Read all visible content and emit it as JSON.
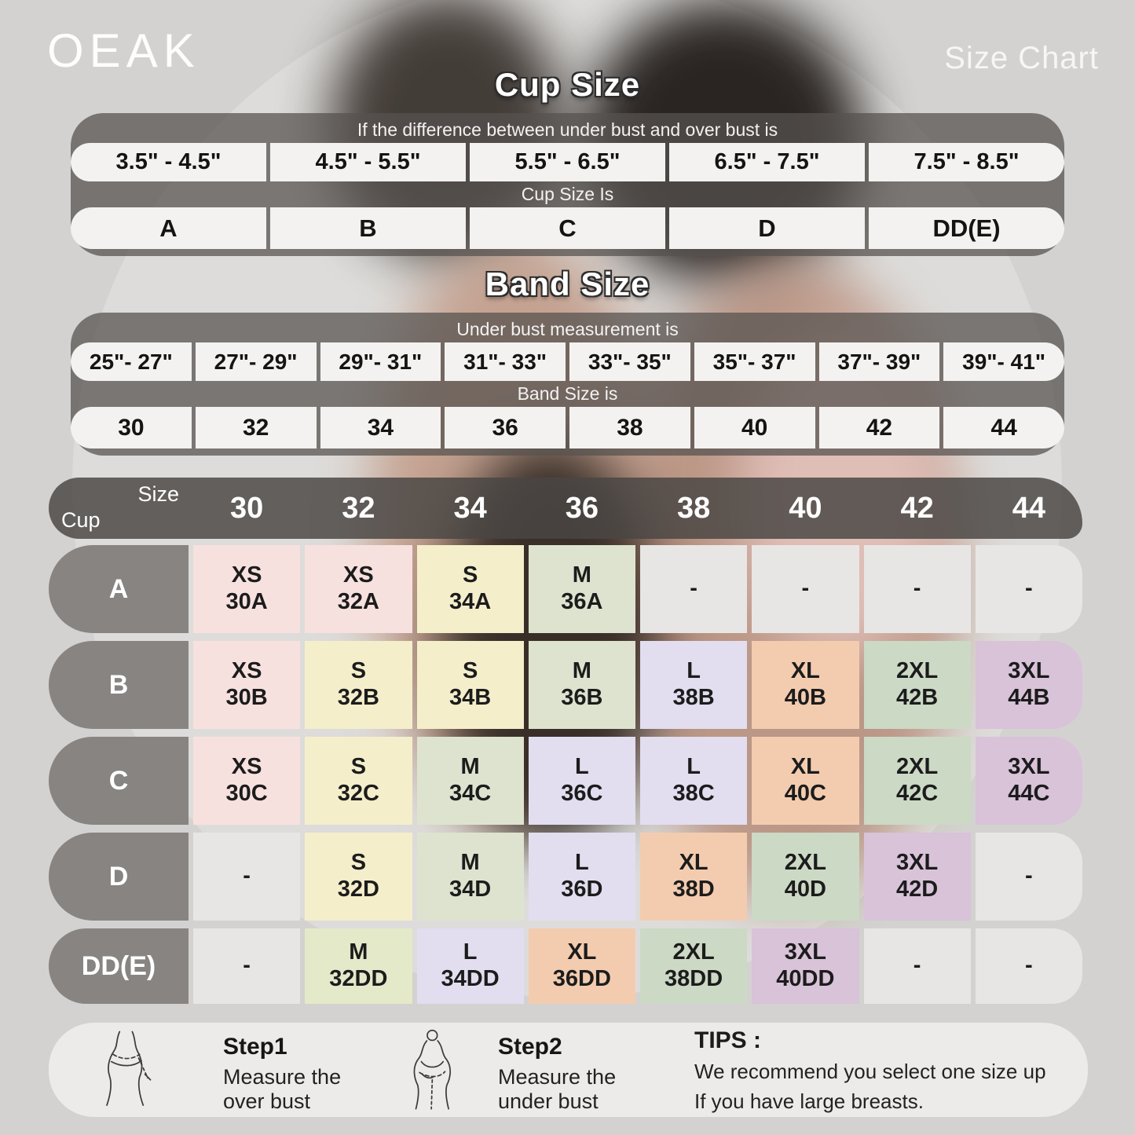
{
  "brand": "OEAK",
  "page_title": "Size Chart",
  "cup_section": {
    "title": "Cup Size",
    "condition_label": "If the  difference between under bust and over bust is",
    "ranges": [
      "3.5\" - 4.5\"",
      "4.5\" - 5.5\"",
      "5.5\" - 6.5\"",
      "6.5\" - 7.5\"",
      "7.5\" - 8.5\""
    ],
    "result_label": "Cup Size Is",
    "cups": [
      "A",
      "B",
      "C",
      "D",
      "DD(E)"
    ]
  },
  "band_section": {
    "title": "Band Size",
    "condition_label": "Under bust measurement is",
    "ranges": [
      "25\"- 27\"",
      "27\"- 29\"",
      "29\"- 31\"",
      "31\"- 33\"",
      "33\"- 35\"",
      "35\"- 37\"",
      "37\"- 39\"",
      "39\"- 41\""
    ],
    "result_label": "Band Size is",
    "bands": [
      "30",
      "32",
      "34",
      "36",
      "38",
      "40",
      "42",
      "44"
    ]
  },
  "matrix": {
    "corner_top": "Size",
    "corner_bottom": "Cup",
    "columns": [
      "30",
      "32",
      "34",
      "36",
      "38",
      "40",
      "42",
      "44"
    ],
    "colors": {
      "pink": "#f7e1df",
      "yellow": "#f5eecb",
      "green": "#dee3cf",
      "sage": "#ccd9c5",
      "lime": "#e4e9c9",
      "lavender": "#e2def0",
      "peach": "#f3ccb0",
      "mauve": "#d8c3d9",
      "empty": "#e8e6e5"
    },
    "rows": [
      {
        "cup": "A",
        "cells": [
          {
            "size": "XS",
            "code": "30A",
            "color": "pink"
          },
          {
            "size": "XS",
            "code": "32A",
            "color": "pink"
          },
          {
            "size": "S",
            "code": "34A",
            "color": "yellow"
          },
          {
            "size": "M",
            "code": "36A",
            "color": "green"
          },
          {
            "size": "-",
            "code": "",
            "color": "empty"
          },
          {
            "size": "-",
            "code": "",
            "color": "empty"
          },
          {
            "size": "-",
            "code": "",
            "color": "empty"
          },
          {
            "size": "-",
            "code": "",
            "color": "empty"
          }
        ]
      },
      {
        "cup": "B",
        "cells": [
          {
            "size": "XS",
            "code": "30B",
            "color": "pink"
          },
          {
            "size": "S",
            "code": "32B",
            "color": "yellow"
          },
          {
            "size": "S",
            "code": "34B",
            "color": "yellow"
          },
          {
            "size": "M",
            "code": "36B",
            "color": "green"
          },
          {
            "size": "L",
            "code": "38B",
            "color": "lavender"
          },
          {
            "size": "XL",
            "code": "40B",
            "color": "peach"
          },
          {
            "size": "2XL",
            "code": "42B",
            "color": "sage"
          },
          {
            "size": "3XL",
            "code": "44B",
            "color": "mauve"
          }
        ]
      },
      {
        "cup": "C",
        "cells": [
          {
            "size": "XS",
            "code": "30C",
            "color": "pink"
          },
          {
            "size": "S",
            "code": "32C",
            "color": "yellow"
          },
          {
            "size": "M",
            "code": "34C",
            "color": "green"
          },
          {
            "size": "L",
            "code": "36C",
            "color": "lavender"
          },
          {
            "size": "L",
            "code": "38C",
            "color": "lavender"
          },
          {
            "size": "XL",
            "code": "40C",
            "color": "peach"
          },
          {
            "size": "2XL",
            "code": "42C",
            "color": "sage"
          },
          {
            "size": "3XL",
            "code": "44C",
            "color": "mauve"
          }
        ]
      },
      {
        "cup": "D",
        "cells": [
          {
            "size": "-",
            "code": "",
            "color": "empty"
          },
          {
            "size": "S",
            "code": "32D",
            "color": "yellow"
          },
          {
            "size": "M",
            "code": "34D",
            "color": "green"
          },
          {
            "size": "L",
            "code": "36D",
            "color": "lavender"
          },
          {
            "size": "XL",
            "code": "38D",
            "color": "peach"
          },
          {
            "size": "2XL",
            "code": "40D",
            "color": "sage"
          },
          {
            "size": "3XL",
            "code": "42D",
            "color": "mauve"
          },
          {
            "size": "-",
            "code": "",
            "color": "empty"
          }
        ]
      },
      {
        "cup": "DD(E)",
        "cells": [
          {
            "size": "-",
            "code": "",
            "color": "empty"
          },
          {
            "size": "M",
            "code": "32DD",
            "color": "lime"
          },
          {
            "size": "L",
            "code": "34DD",
            "color": "lavender"
          },
          {
            "size": "XL",
            "code": "36DD",
            "color": "peach"
          },
          {
            "size": "2XL",
            "code": "38DD",
            "color": "sage"
          },
          {
            "size": "3XL",
            "code": "40DD",
            "color": "mauve"
          },
          {
            "size": "-",
            "code": "",
            "color": "empty"
          },
          {
            "size": "-",
            "code": "",
            "color": "empty"
          }
        ]
      }
    ]
  },
  "footer": {
    "steps": [
      {
        "title": "Step1",
        "line1": "Measure the",
        "line2": "over bust"
      },
      {
        "title": "Step2",
        "line1": "Measure the",
        "line2": "under bust"
      }
    ],
    "tips": {
      "title": "TIPS :",
      "line1": "We recommend you select one size up",
      "line2": "If you have large breasts."
    }
  }
}
